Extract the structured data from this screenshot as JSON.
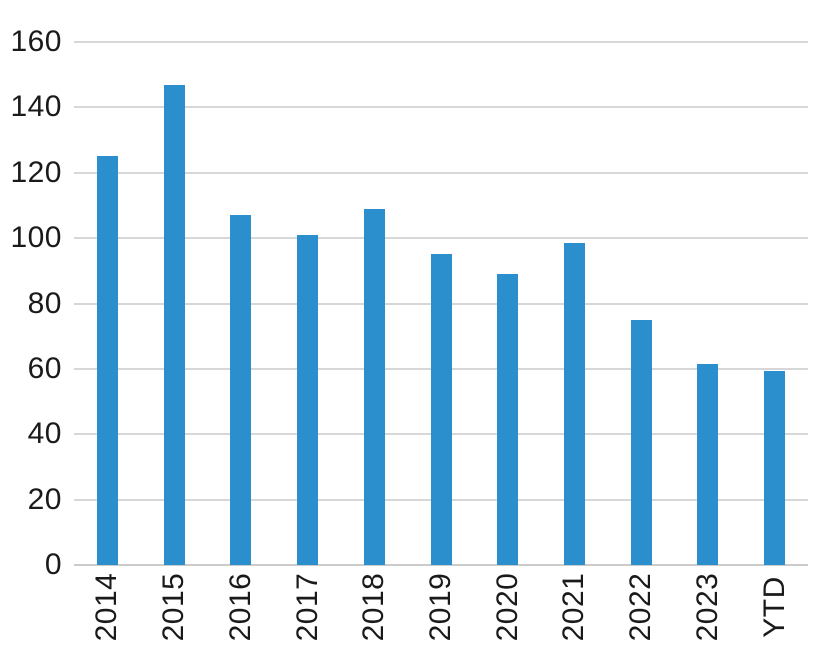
{
  "chart_data": {
    "type": "bar",
    "title": "",
    "xlabel": "",
    "ylabel": "",
    "categories": [
      "2014",
      "2015",
      "2016",
      "2017",
      "2018",
      "2019",
      "2020",
      "2021",
      "2022",
      "2023",
      "YTD"
    ],
    "values": [
      125,
      147,
      107,
      101,
      109,
      95,
      89,
      98.5,
      75,
      61.5,
      59.5
    ],
    "ylim": [
      0,
      160
    ],
    "yticks": [
      0,
      20,
      40,
      60,
      80,
      100,
      120,
      140,
      160
    ],
    "grid": true,
    "legend_position": "none",
    "x_tick_rotation": -90,
    "colors": {
      "bar": "#2b8ecd",
      "gridline": "#d7d7d7",
      "baseline": "#cbcbcb",
      "tick_text": "#1a1a1a",
      "background": "#ffffff"
    }
  }
}
